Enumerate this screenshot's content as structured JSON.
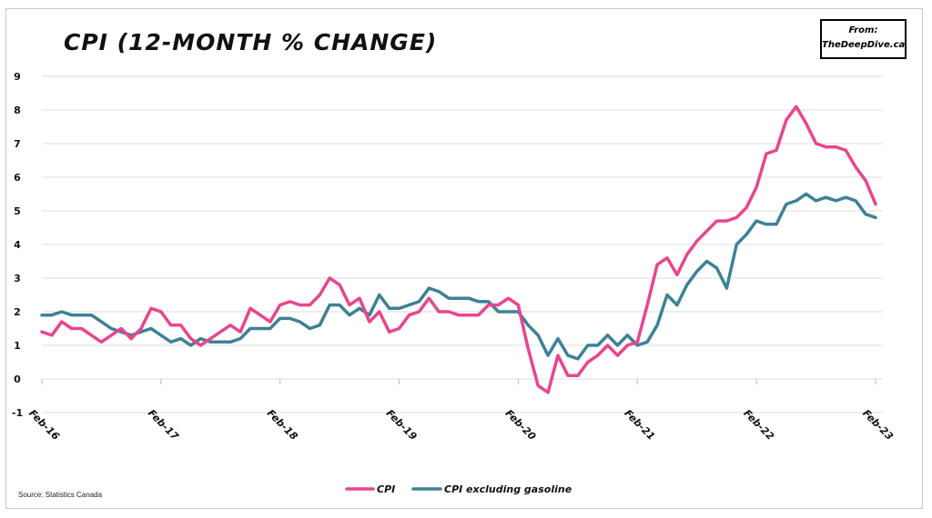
{
  "badge": {
    "line1": "From:",
    "line2": "TheDeepDive.ca"
  },
  "source": "Source: Statistics Canada",
  "chart_data": {
    "type": "line",
    "title": "CPI (12-month % change)",
    "xlabel": "",
    "ylabel": "",
    "ylim": [
      -1,
      9
    ],
    "yticks": [
      "-1",
      "0",
      "1",
      "2",
      "3",
      "4",
      "5",
      "6",
      "7",
      "8",
      "9"
    ],
    "xtick_labels": [
      "Feb-16",
      "Feb-17",
      "Feb-18",
      "Feb-19",
      "Feb-20",
      "Feb-21",
      "Feb-22",
      "Feb-23"
    ],
    "grid": "horizontal",
    "legend_position": "bottom-center",
    "colors": {
      "CPI": "#e9458f",
      "CPI excluding gasoline": "#3d8196",
      "grid": "#dcdcdc"
    },
    "series": [
      {
        "name": "CPI",
        "values": [
          1.4,
          1.3,
          1.7,
          1.5,
          1.5,
          1.3,
          1.1,
          1.3,
          1.5,
          1.2,
          1.5,
          2.1,
          2.0,
          1.6,
          1.6,
          1.2,
          1.0,
          1.2,
          1.4,
          1.6,
          1.4,
          2.1,
          1.9,
          1.7,
          2.2,
          2.3,
          2.2,
          2.2,
          2.5,
          3.0,
          2.8,
          2.2,
          2.4,
          1.7,
          2.0,
          1.4,
          1.5,
          1.9,
          2.0,
          2.4,
          2.0,
          2.0,
          1.9,
          1.9,
          1.9,
          2.2,
          2.2,
          2.4,
          2.2,
          0.9,
          -0.2,
          -0.4,
          0.7,
          0.1,
          0.1,
          0.5,
          0.7,
          1.0,
          0.7,
          1.0,
          1.1,
          2.2,
          3.4,
          3.6,
          3.1,
          3.7,
          4.1,
          4.4,
          4.7,
          4.7,
          4.8,
          5.1,
          5.7,
          6.7,
          6.8,
          7.7,
          8.1,
          7.6,
          7.0,
          6.9,
          6.9,
          6.8,
          6.3,
          5.9,
          5.2
        ]
      },
      {
        "name": "CPI excluding gasoline",
        "values": [
          1.9,
          1.9,
          2.0,
          1.9,
          1.9,
          1.9,
          1.7,
          1.5,
          1.4,
          1.3,
          1.4,
          1.5,
          1.3,
          1.1,
          1.2,
          1.0,
          1.2,
          1.1,
          1.1,
          1.1,
          1.2,
          1.5,
          1.5,
          1.5,
          1.8,
          1.8,
          1.7,
          1.5,
          1.6,
          2.2,
          2.2,
          1.9,
          2.1,
          1.9,
          2.5,
          2.1,
          2.1,
          2.2,
          2.3,
          2.7,
          2.6,
          2.4,
          2.4,
          2.4,
          2.3,
          2.3,
          2.0,
          2.0,
          2.0,
          1.6,
          1.3,
          0.7,
          1.2,
          0.7,
          0.6,
          1.0,
          1.0,
          1.3,
          1.0,
          1.3,
          1.0,
          1.1,
          1.6,
          2.5,
          2.2,
          2.8,
          3.2,
          3.5,
          3.3,
          2.7,
          4.0,
          4.3,
          4.7,
          4.6,
          4.6,
          5.2,
          5.3,
          5.5,
          5.3,
          5.4,
          5.3,
          5.4,
          5.3,
          4.9,
          4.8
        ]
      }
    ]
  }
}
